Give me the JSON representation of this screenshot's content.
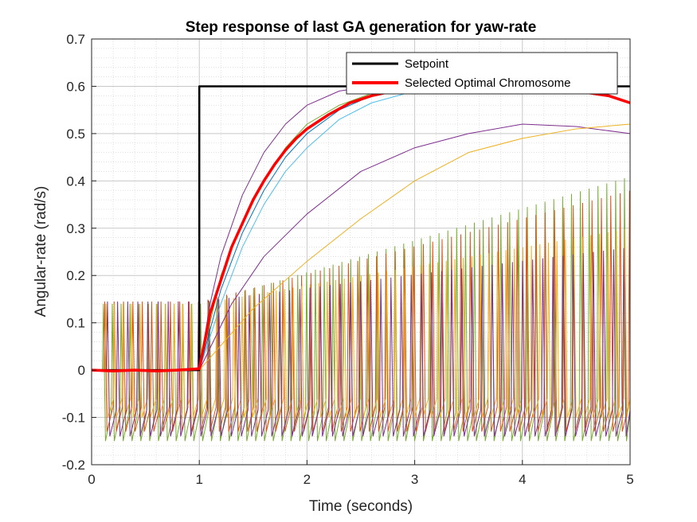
{
  "chart_data": {
    "type": "line",
    "title": "Step response of last GA generation for yaw-rate",
    "xlabel": "Time (seconds)",
    "ylabel": "Angular-rate (rad/s)",
    "xlim": [
      0,
      5
    ],
    "ylim": [
      -0.2,
      0.7
    ],
    "xticks": [
      0,
      1,
      2,
      3,
      4,
      5
    ],
    "yticks": [
      -0.2,
      -0.1,
      0,
      0.1,
      0.2,
      0.3,
      0.4,
      0.5,
      0.6,
      0.7
    ],
    "xtick_labels": [
      "0",
      "1",
      "2",
      "3",
      "4",
      "5"
    ],
    "ytick_labels": [
      "-0.2",
      "-0.1",
      "0",
      "0.1",
      "0.2",
      "0.3",
      "0.4",
      "0.5",
      "0.6",
      "0.7"
    ],
    "grid": true,
    "minor_grid": true,
    "legend_position": "top-right",
    "series": [
      {
        "name": "Setpoint",
        "color": "#000000",
        "x": [
          0,
          1,
          1,
          5
        ],
        "y": [
          0,
          0,
          0.6,
          0.6
        ]
      },
      {
        "name": "Selected Optimal Chromosome",
        "color": "#ff0000",
        "x": [
          0,
          0.2,
          0.4,
          0.6,
          0.8,
          1.0,
          1.05,
          1.1,
          1.2,
          1.3,
          1.4,
          1.5,
          1.6,
          1.7,
          1.8,
          1.9,
          2.0,
          2.2,
          2.4,
          2.6,
          2.8,
          3.0,
          3.5,
          4.0,
          4.5,
          4.8,
          5.0
        ],
        "y": [
          0,
          -0.002,
          0,
          -0.002,
          0,
          0.003,
          0.06,
          0.12,
          0.19,
          0.26,
          0.31,
          0.36,
          0.4,
          0.435,
          0.465,
          0.49,
          0.51,
          0.54,
          0.565,
          0.58,
          0.59,
          0.595,
          0.6,
          0.6,
          0.59,
          0.58,
          0.565
        ]
      },
      {
        "color": "#7e2f8e",
        "x": [
          1.0,
          1.1,
          1.2,
          1.4,
          1.6,
          1.8,
          2.0,
          2.3,
          2.6,
          3.0,
          3.5,
          4.0,
          4.5,
          5.0
        ],
        "y": [
          0,
          0.14,
          0.24,
          0.37,
          0.46,
          0.52,
          0.56,
          0.59,
          0.6,
          0.605,
          0.6,
          0.6,
          0.6,
          0.6
        ]
      },
      {
        "color": "#7e2f8e",
        "x": [
          1.0,
          1.3,
          1.6,
          2.0,
          2.5,
          3.0,
          3.5,
          4.0,
          4.5,
          5.0
        ],
        "y": [
          0.0,
          0.14,
          0.24,
          0.33,
          0.42,
          0.47,
          0.5,
          0.52,
          0.515,
          0.5
        ]
      },
      {
        "color": "#edb120",
        "x": [
          1.0,
          1.5,
          2.0,
          2.5,
          3.0,
          3.5,
          4.0,
          4.5,
          5.0
        ],
        "y": [
          0.0,
          0.13,
          0.23,
          0.32,
          0.4,
          0.46,
          0.49,
          0.51,
          0.52
        ]
      },
      {
        "color": "#4dbeee",
        "x": [
          1.0,
          1.2,
          1.4,
          1.6,
          1.8,
          2.0,
          2.3,
          2.6,
          3.0,
          3.5
        ],
        "y": [
          0,
          0.14,
          0.26,
          0.35,
          0.42,
          0.47,
          0.53,
          0.565,
          0.59,
          0.6
        ]
      },
      {
        "color": "#0072bd",
        "x": [
          1.0,
          1.2,
          1.4,
          1.6,
          1.8,
          2.0,
          2.3,
          2.6,
          3.0,
          3.5
        ],
        "y": [
          0,
          0.17,
          0.29,
          0.38,
          0.45,
          0.5,
          0.55,
          0.58,
          0.595,
          0.6
        ]
      },
      {
        "color": "#77ac30",
        "x": [
          1.0,
          1.2,
          1.4,
          1.6,
          1.8,
          2.0,
          2.3,
          2.6,
          3.0,
          3.5
        ],
        "y": [
          0,
          0.2,
          0.31,
          0.4,
          0.47,
          0.52,
          0.56,
          0.585,
          0.6,
          0.6
        ]
      }
    ],
    "oscillating_series": [
      {
        "color": "#77ac30",
        "period": 0.082,
        "min_start": -0.15,
        "max_start": 0.14,
        "max_end": 0.41
      },
      {
        "color": "#d95319",
        "period": 0.087,
        "min_start": -0.13,
        "max_start": 0.145,
        "max_end": 0.38
      },
      {
        "color": "#edb120",
        "period": 0.079,
        "min_start": -0.1,
        "max_start": 0.14,
        "max_end": 0.3
      },
      {
        "color": "#7e2f8e",
        "period": 0.094,
        "min_start": -0.14,
        "max_start": 0.145,
        "max_end": 0.26
      }
    ]
  }
}
